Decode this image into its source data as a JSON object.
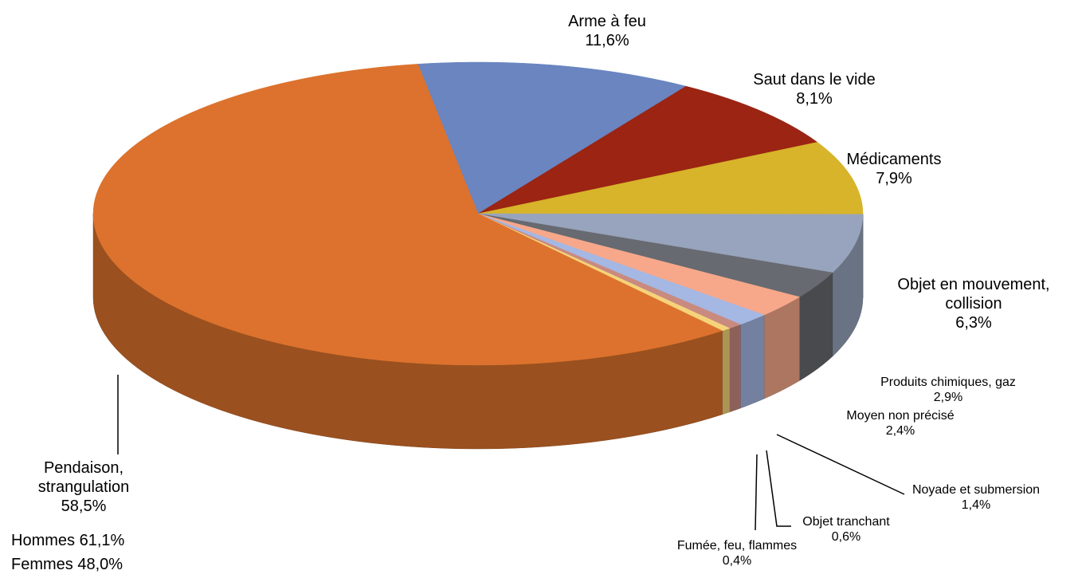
{
  "chart_data": {
    "type": "pie3d",
    "categories": [
      "Arme à feu",
      "Saut dans le vide",
      "Médicaments",
      "Objet en mouvement, collision",
      "Produits chimiques, gaz",
      "Moyen non précisé",
      "Noyade et submersion",
      "Objet tranchant",
      "Fumée, feu, flammes",
      "Pendaison, strangulation"
    ],
    "values": [
      11.6,
      8.1,
      7.9,
      6.3,
      2.9,
      2.4,
      1.4,
      0.6,
      0.4,
      58.5
    ],
    "value_labels": [
      "11,6%",
      "8,1%",
      "7,9%",
      "6,3%",
      "2,9%",
      "2,4%",
      "1,4%",
      "0,6%",
      "0,4%",
      "58,5%"
    ],
    "colors": [
      "#6a85c0",
      "#9b2413",
      "#d7b42a",
      "#98a4bd",
      "#676a70",
      "#f7a88a",
      "#a5b7e3",
      "#c98a80",
      "#f6d37a",
      "#dc722d"
    ],
    "annotations": [
      "Hommes 61,1%",
      "Femmes 48,0%"
    ]
  }
}
